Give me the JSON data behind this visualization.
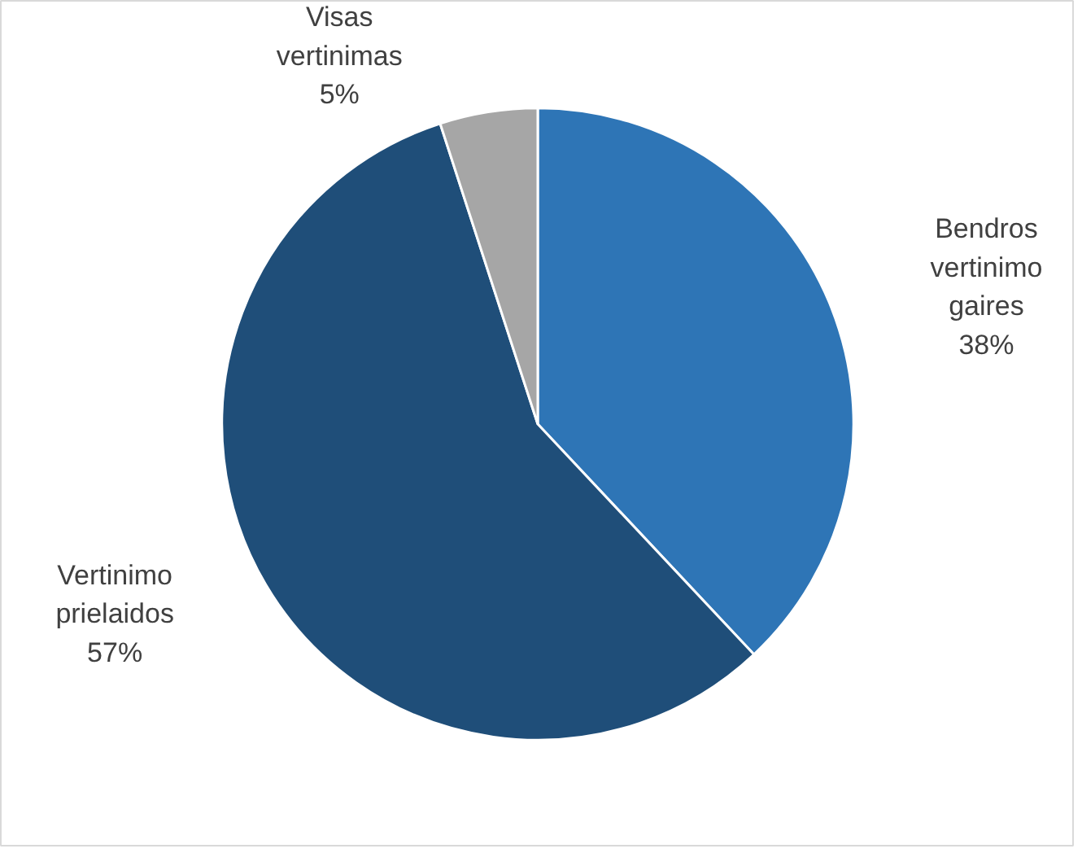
{
  "chart_data": {
    "type": "pie",
    "categories": [
      "Bendros vertinimo gaires",
      "Vertinimo prielaidos",
      "Visas vertinimas"
    ],
    "values": [
      38,
      57,
      5
    ],
    "colors": [
      "#2e75b6",
      "#1f4e79",
      "#a6a6a6"
    ],
    "value_labels": [
      "38%",
      "57%",
      "5%"
    ]
  }
}
